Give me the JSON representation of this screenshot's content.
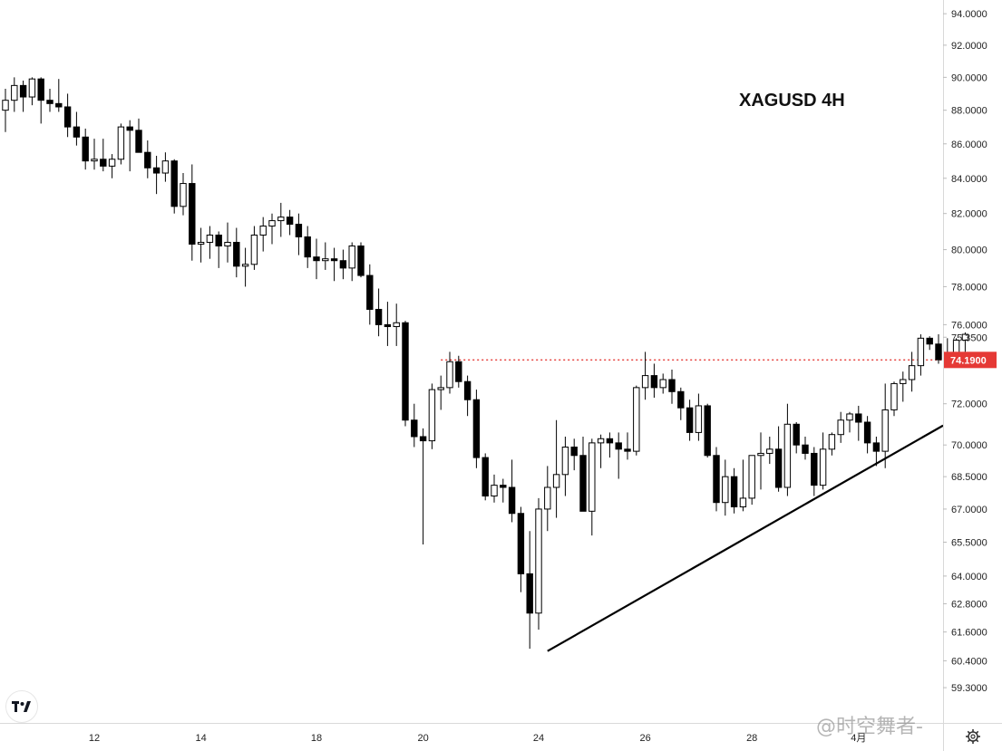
{
  "chart_data": {
    "type": "candlestick",
    "title": "XAGUSD 4H",
    "y_axis": {
      "scale": "log",
      "ylim": [
        58.5,
        94.3
      ],
      "ticks": [
        "94.0000",
        "92.0000",
        "90.0000",
        "88.0000",
        "86.0000",
        "84.0000",
        "82.0000",
        "80.0000",
        "78.0000",
        "76.0000",
        "75.3500",
        "72.0000",
        "70.0000",
        "68.5000",
        "67.0000",
        "65.5000",
        "64.0000",
        "62.8000",
        "61.6000",
        "60.4000",
        "59.3000"
      ],
      "position": "right"
    },
    "x_axis": {
      "ticks": [
        "12",
        "14",
        "18",
        "20",
        "24",
        "26",
        "28",
        "4月"
      ]
    },
    "price_marker": {
      "value": "74.1900",
      "color": "#e53935"
    },
    "resistance_line": {
      "value": 74.19,
      "style": "dotted",
      "color": "#e53935"
    },
    "trendline": {
      "from": [
        61,
        60.8
      ],
      "to": [
        113,
        72.8
      ],
      "color": "#000000"
    },
    "candles": [
      [
        88.0,
        89.3,
        86.7,
        88.6
      ],
      [
        88.6,
        90.0,
        87.9,
        89.5
      ],
      [
        89.5,
        89.8,
        87.9,
        88.8
      ],
      [
        88.8,
        90.0,
        88.3,
        89.9
      ],
      [
        89.9,
        90.0,
        87.2,
        88.6
      ],
      [
        88.6,
        89.3,
        87.9,
        88.4
      ],
      [
        88.4,
        89.9,
        87.9,
        88.2
      ],
      [
        88.2,
        89.0,
        86.4,
        87.0
      ],
      [
        87.0,
        87.9,
        85.9,
        86.4
      ],
      [
        86.4,
        86.9,
        84.5,
        85.0
      ],
      [
        85.0,
        86.3,
        84.5,
        85.1
      ],
      [
        85.1,
        86.3,
        84.4,
        84.7
      ],
      [
        84.7,
        85.4,
        84.0,
        85.1
      ],
      [
        85.1,
        87.2,
        84.8,
        87.0
      ],
      [
        87.0,
        87.4,
        84.4,
        86.8
      ],
      [
        86.8,
        87.5,
        85.5,
        85.5
      ],
      [
        85.5,
        86.2,
        84.0,
        84.6
      ],
      [
        84.6,
        85.3,
        83.1,
        84.3
      ],
      [
        84.3,
        85.5,
        83.8,
        85.0
      ],
      [
        85.0,
        85.1,
        82.0,
        82.4
      ],
      [
        82.4,
        84.3,
        81.9,
        83.7
      ],
      [
        83.7,
        84.8,
        79.4,
        80.3
      ],
      [
        80.3,
        81.2,
        79.3,
        80.4
      ],
      [
        80.4,
        81.3,
        79.5,
        80.8
      ],
      [
        80.8,
        81.0,
        79.0,
        80.2
      ],
      [
        80.2,
        81.5,
        79.3,
        80.4
      ],
      [
        80.4,
        81.2,
        78.5,
        79.1
      ],
      [
        79.1,
        80.1,
        78.0,
        79.2
      ],
      [
        79.2,
        81.3,
        78.9,
        80.8
      ],
      [
        80.8,
        81.8,
        79.9,
        81.3
      ],
      [
        81.3,
        82.0,
        80.3,
        81.6
      ],
      [
        81.6,
        82.6,
        80.7,
        81.8
      ],
      [
        81.8,
        82.2,
        80.8,
        81.4
      ],
      [
        81.4,
        82.0,
        79.7,
        80.7
      ],
      [
        80.7,
        81.3,
        79.0,
        79.6
      ],
      [
        79.6,
        80.6,
        78.4,
        79.4
      ],
      [
        79.4,
        80.4,
        78.9,
        79.5
      ],
      [
        79.5,
        80.1,
        78.3,
        79.4
      ],
      [
        79.4,
        80.0,
        78.4,
        79.0
      ],
      [
        79.0,
        80.4,
        78.3,
        80.2
      ],
      [
        80.2,
        80.4,
        78.5,
        78.6
      ],
      [
        78.6,
        79.2,
        76.0,
        76.8
      ],
      [
        76.8,
        77.9,
        75.4,
        76.0
      ],
      [
        76.0,
        77.2,
        74.9,
        75.9
      ],
      [
        75.9,
        77.1,
        74.9,
        76.1
      ],
      [
        76.1,
        76.2,
        70.9,
        71.2
      ],
      [
        71.2,
        72.0,
        69.9,
        70.4
      ],
      [
        70.4,
        70.8,
        65.4,
        70.2
      ],
      [
        70.2,
        73.0,
        69.8,
        72.7
      ],
      [
        72.7,
        73.4,
        71.7,
        72.8
      ],
      [
        72.8,
        74.6,
        72.5,
        74.1
      ],
      [
        74.1,
        74.4,
        72.8,
        73.1
      ],
      [
        73.1,
        73.4,
        71.4,
        72.2
      ],
      [
        72.2,
        72.7,
        68.9,
        69.4
      ],
      [
        69.4,
        69.6,
        67.4,
        67.6
      ],
      [
        67.6,
        68.6,
        67.3,
        68.1
      ],
      [
        68.1,
        68.4,
        67.3,
        68.0
      ],
      [
        68.0,
        69.3,
        66.4,
        66.8
      ],
      [
        66.8,
        67.1,
        63.3,
        64.1
      ],
      [
        64.1,
        66.0,
        60.9,
        62.4
      ],
      [
        62.4,
        67.5,
        61.7,
        67.0
      ],
      [
        67.0,
        69.0,
        66.0,
        68.0
      ],
      [
        68.0,
        71.2,
        66.6,
        68.6
      ],
      [
        68.6,
        70.4,
        67.6,
        69.9
      ],
      [
        69.9,
        70.3,
        68.8,
        69.5
      ],
      [
        69.5,
        70.4,
        66.9,
        66.9
      ],
      [
        66.9,
        70.3,
        65.8,
        70.1
      ],
      [
        70.1,
        70.5,
        68.9,
        70.3
      ],
      [
        70.3,
        70.6,
        69.4,
        70.1
      ],
      [
        70.1,
        70.6,
        68.4,
        69.8
      ],
      [
        69.8,
        70.6,
        69.3,
        69.7
      ],
      [
        69.7,
        72.9,
        69.5,
        72.8
      ],
      [
        72.8,
        74.6,
        72.2,
        73.4
      ],
      [
        73.4,
        74.0,
        72.3,
        72.8
      ],
      [
        72.8,
        73.5,
        72.5,
        73.2
      ],
      [
        73.2,
        73.7,
        72.0,
        72.6
      ],
      [
        72.6,
        72.8,
        71.2,
        71.8
      ],
      [
        71.8,
        72.2,
        70.2,
        70.6
      ],
      [
        70.6,
        72.5,
        70.2,
        71.9
      ],
      [
        71.9,
        72.0,
        69.4,
        69.5
      ],
      [
        69.5,
        69.9,
        66.9,
        67.3
      ],
      [
        67.3,
        69.3,
        66.7,
        68.5
      ],
      [
        68.5,
        68.9,
        66.8,
        67.1
      ],
      [
        67.1,
        69.3,
        66.9,
        67.5
      ],
      [
        67.5,
        69.5,
        67.2,
        69.5
      ],
      [
        69.5,
        70.6,
        67.9,
        69.6
      ],
      [
        69.6,
        70.4,
        69.1,
        69.8
      ],
      [
        69.8,
        70.9,
        67.8,
        68.0
      ],
      [
        68.0,
        72.0,
        67.6,
        71.0
      ],
      [
        71.0,
        71.1,
        69.6,
        70.0
      ],
      [
        70.0,
        70.4,
        69.3,
        69.6
      ],
      [
        69.6,
        69.9,
        67.6,
        68.1
      ],
      [
        68.1,
        70.6,
        67.9,
        69.8
      ],
      [
        69.8,
        70.6,
        69.5,
        70.5
      ],
      [
        70.5,
        71.6,
        70.1,
        71.2
      ],
      [
        71.2,
        71.6,
        70.6,
        71.5
      ],
      [
        71.5,
        71.9,
        70.2,
        71.1
      ],
      [
        71.1,
        71.4,
        69.6,
        70.1
      ],
      [
        70.1,
        70.4,
        69.0,
        69.7
      ],
      [
        69.7,
        73.0,
        68.9,
        71.7
      ],
      [
        71.7,
        73.1,
        71.4,
        73.0
      ],
      [
        73.0,
        73.6,
        72.1,
        73.2
      ],
      [
        73.2,
        74.6,
        72.6,
        73.9
      ],
      [
        73.9,
        75.5,
        73.4,
        75.3
      ],
      [
        75.3,
        75.4,
        74.7,
        75.0
      ],
      [
        75.0,
        75.5,
        74.0,
        74.2
      ],
      [
        74.2,
        75.3,
        73.9,
        74.0
      ],
      [
        74.0,
        75.3,
        74.0,
        75.2
      ],
      [
        75.2,
        75.6,
        74.6,
        75.5
      ]
    ]
  },
  "watermark": {
    "text": "@时空舞者-"
  },
  "logo": {
    "text": "TV"
  },
  "icons": {
    "settings": "gear-icon",
    "logo": "tradingview-logo-icon"
  }
}
